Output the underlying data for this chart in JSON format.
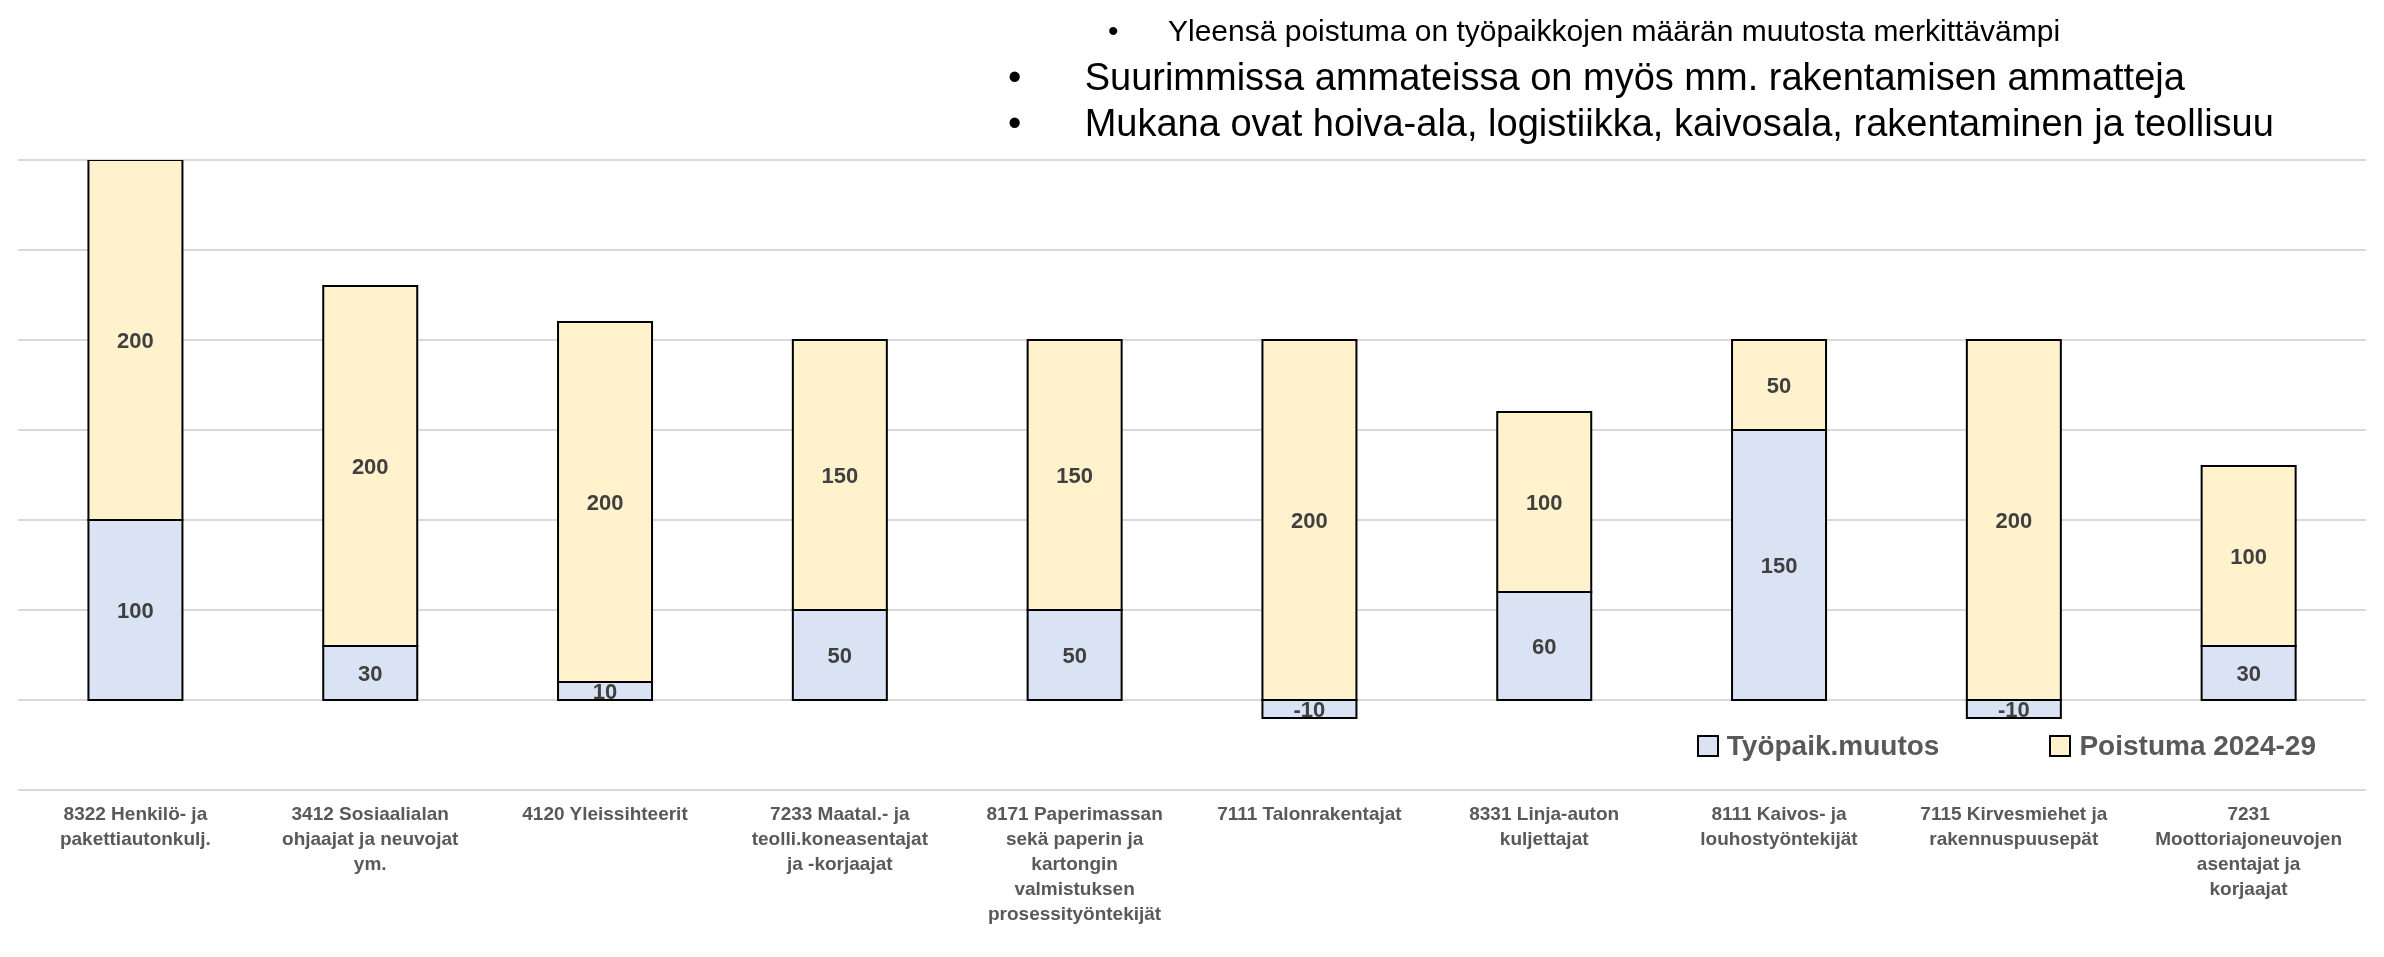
{
  "chart_data": {
    "type": "bar",
    "stacked": true,
    "categories": [
      "8322 Henkilö-  ja pakettiautonkulj.",
      "3412 Sosiaalialan ohjaajat ja neuvojat ym.",
      "4120 Yleissihteerit",
      "7233 Maatal.- ja teolli.koneasentajat ja -korjaajat",
      "8171 Paperimassan sekä paperin ja kartongin valmistuksen prosessityöntekijät",
      "7111 Talonrakentajat",
      "8331 Linja-auton kuljettajat",
      "8111 Kaivos- ja louhostyöntekijät",
      "7115 Kirvesmiehet ja rakennuspuusepät",
      "7231 Moottoriajoneuvojen asentajat ja korjaajat"
    ],
    "series": [
      {
        "name": "Työpaik.muutos",
        "color": "#dae3f3",
        "values": [
          100,
          30,
          10,
          50,
          50,
          -10,
          60,
          150,
          -10,
          30
        ]
      },
      {
        "name": "Poistuma 2024-29",
        "color": "#fff2cc",
        "values": [
          200,
          200,
          200,
          150,
          150,
          200,
          100,
          50,
          200,
          100
        ]
      }
    ],
    "ylim": [
      -50,
      300
    ],
    "yticks": [
      {
        "value": -50,
        "label": null
      },
      {
        "value": 0,
        "label": null
      },
      {
        "value": 50,
        "label": null
      },
      {
        "value": 100,
        "label": null
      },
      {
        "value": 150,
        "label": null
      },
      {
        "value": 200,
        "label": null
      },
      {
        "value": 250,
        "label": null
      },
      {
        "value": 300,
        "label": null
      }
    ],
    "tick_labels": "x",
    "grid": "y",
    "legend": "bottom right",
    "data_labels": true,
    "annotations": [
      "•      Yleensä poistuma on työpaikkojen määrän muutosta merkittävämpi",
      "•      Suurimmissa ammateissa on myös mm. rakentamisen ammatteja",
      "•      Mukana ovat hoiva-ala, logistiikka, kaivosala, rakentaminen ja teollisuu"
    ]
  }
}
